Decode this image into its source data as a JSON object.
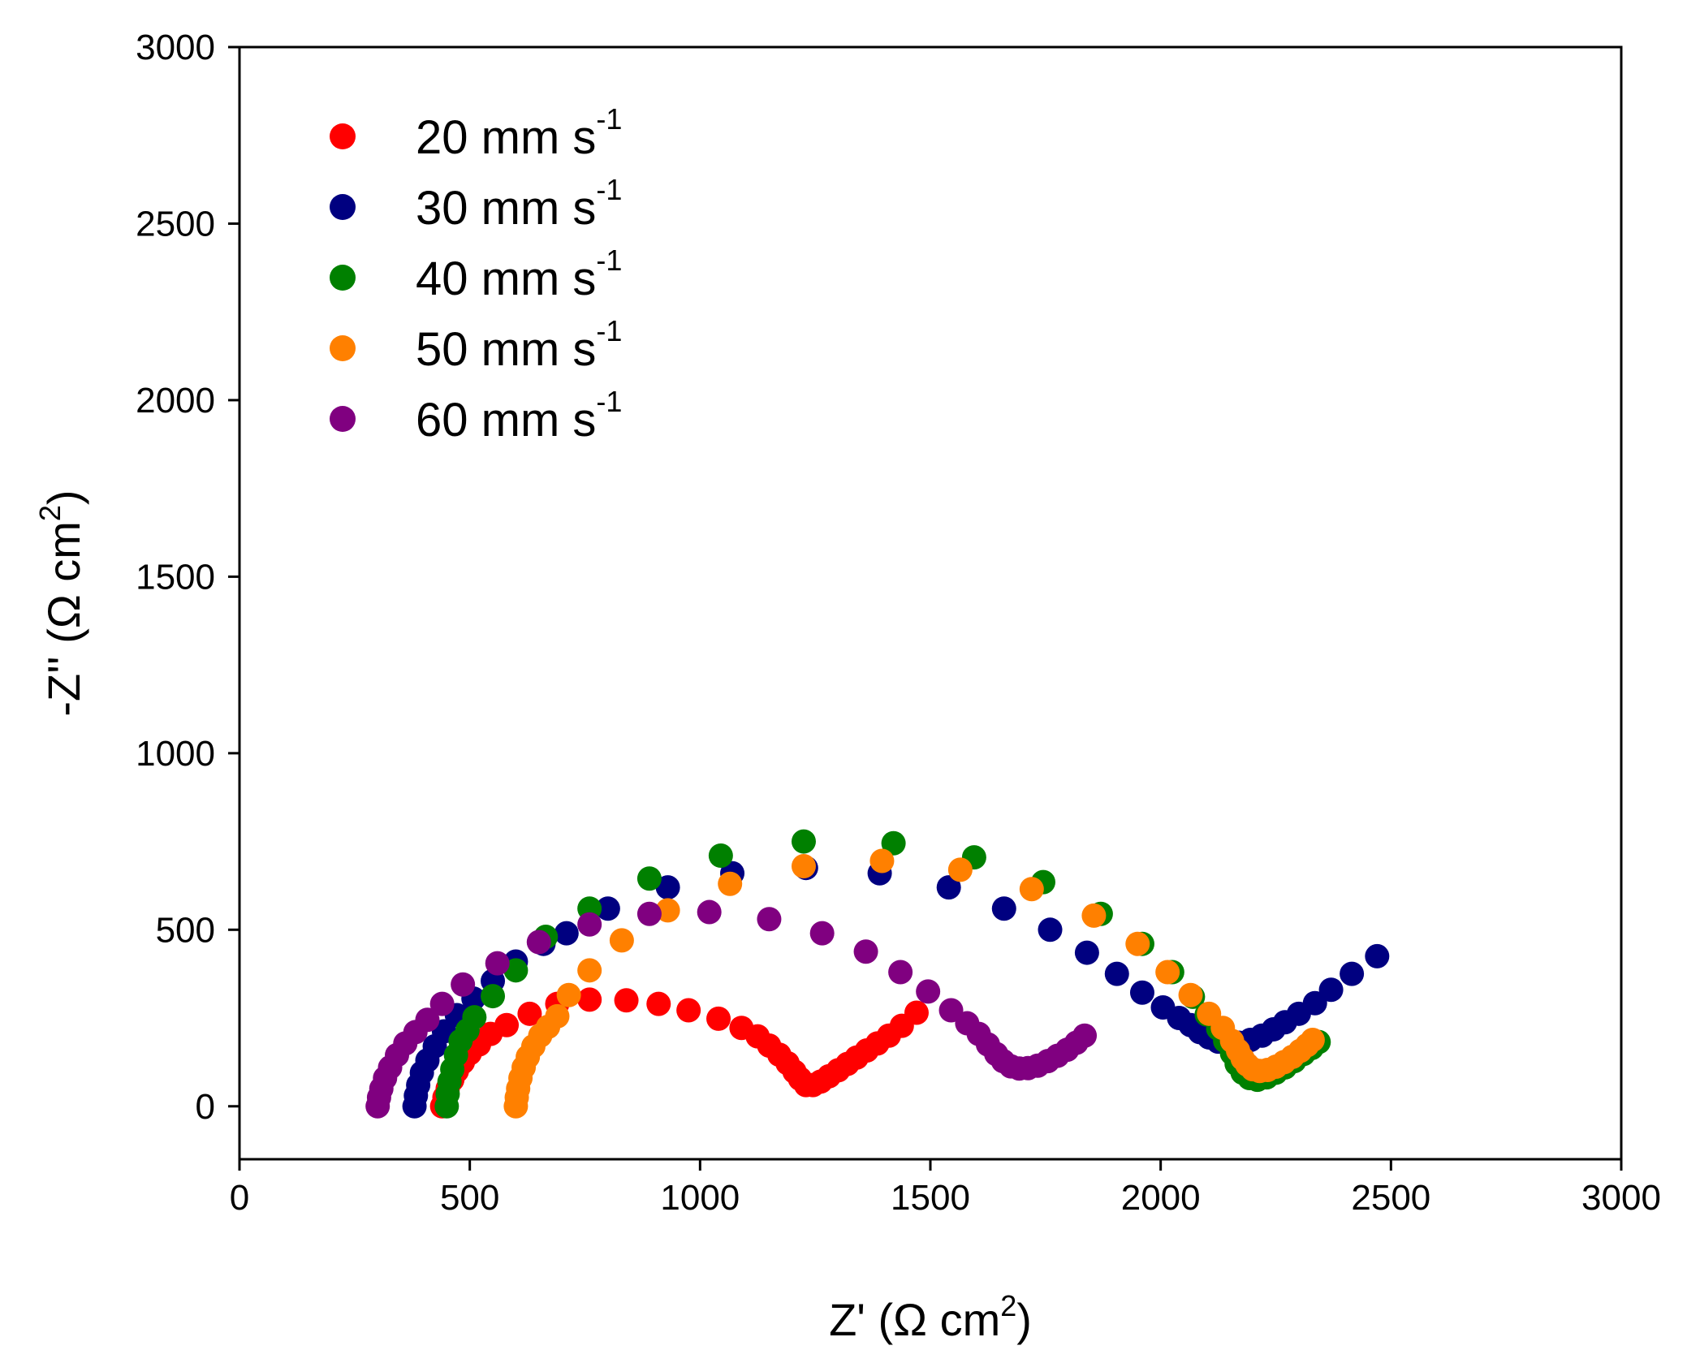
{
  "chart_data": {
    "type": "scatter",
    "title": "",
    "xlabel": "Z' (Ω cm²)",
    "ylabel": "-Z'' (Ω cm²)",
    "xlabel_parts": {
      "main": "Z' (Ω cm",
      "sup": "2",
      "end": ")"
    },
    "ylabel_parts": {
      "main": "-Z'' (Ω cm",
      "sup": "2",
      "end": ")"
    },
    "xlim": [
      0,
      3000
    ],
    "ylim": [
      -150,
      3000
    ],
    "xticks": [
      0,
      500,
      1000,
      1500,
      2000,
      2500,
      3000
    ],
    "yticks": [
      0,
      500,
      1000,
      1500,
      2000,
      2500,
      3000
    ],
    "legend_position": "top-left",
    "series": [
      {
        "name": "20 mm s-1",
        "label_main": "20 mm s",
        "label_sup": "-1",
        "color": "#ff0000",
        "points": [
          [
            440,
            0
          ],
          [
            445,
            25
          ],
          [
            452,
            50
          ],
          [
            462,
            75
          ],
          [
            472,
            100
          ],
          [
            485,
            125
          ],
          [
            500,
            150
          ],
          [
            520,
            175
          ],
          [
            545,
            205
          ],
          [
            580,
            230
          ],
          [
            630,
            262
          ],
          [
            690,
            290
          ],
          [
            760,
            302
          ],
          [
            840,
            300
          ],
          [
            910,
            290
          ],
          [
            975,
            272
          ],
          [
            1040,
            248
          ],
          [
            1090,
            222
          ],
          [
            1125,
            198
          ],
          [
            1150,
            172
          ],
          [
            1172,
            146
          ],
          [
            1190,
            122
          ],
          [
            1205,
            98
          ],
          [
            1217,
            78
          ],
          [
            1230,
            60
          ],
          [
            1245,
            60
          ],
          [
            1262,
            70
          ],
          [
            1280,
            85
          ],
          [
            1300,
            102
          ],
          [
            1320,
            120
          ],
          [
            1340,
            138
          ],
          [
            1362,
            158
          ],
          [
            1385,
            178
          ],
          [
            1410,
            200
          ],
          [
            1438,
            228
          ],
          [
            1470,
            265
          ]
        ]
      },
      {
        "name": "30 mm s-1",
        "label_main": "30 mm s",
        "label_sup": "-1",
        "color": "#000080",
        "points": [
          [
            380,
            0
          ],
          [
            383,
            30
          ],
          [
            388,
            60
          ],
          [
            396,
            95
          ],
          [
            408,
            130
          ],
          [
            424,
            170
          ],
          [
            444,
            212
          ],
          [
            472,
            258
          ],
          [
            508,
            305
          ],
          [
            550,
            355
          ],
          [
            600,
            410
          ],
          [
            660,
            460
          ],
          [
            710,
            490
          ],
          [
            800,
            560
          ],
          [
            930,
            620
          ],
          [
            1070,
            660
          ],
          [
            1230,
            675
          ],
          [
            1390,
            660
          ],
          [
            1540,
            620
          ],
          [
            1660,
            560
          ],
          [
            1760,
            500
          ],
          [
            1840,
            435
          ],
          [
            1905,
            375
          ],
          [
            1960,
            322
          ],
          [
            2005,
            280
          ],
          [
            2040,
            250
          ],
          [
            2065,
            230
          ],
          [
            2085,
            210
          ],
          [
            2105,
            195
          ],
          [
            2125,
            183
          ],
          [
            2145,
            177
          ],
          [
            2170,
            180
          ],
          [
            2195,
            188
          ],
          [
            2220,
            200
          ],
          [
            2245,
            218
          ],
          [
            2270,
            238
          ],
          [
            2300,
            262
          ],
          [
            2335,
            292
          ],
          [
            2370,
            330
          ],
          [
            2415,
            375
          ],
          [
            2470,
            425
          ]
        ]
      },
      {
        "name": "40 mm s-1",
        "label_main": "40 mm s",
        "label_sup": "-1",
        "color": "#008000",
        "points": [
          [
            450,
            0
          ],
          [
            452,
            35
          ],
          [
            456,
            70
          ],
          [
            462,
            105
          ],
          [
            470,
            145
          ],
          [
            480,
            185
          ],
          [
            495,
            215
          ],
          [
            510,
            252
          ],
          [
            550,
            312
          ],
          [
            600,
            385
          ],
          [
            665,
            480
          ],
          [
            760,
            560
          ],
          [
            890,
            645
          ],
          [
            1045,
            710
          ],
          [
            1225,
            750
          ],
          [
            1420,
            745
          ],
          [
            1595,
            705
          ],
          [
            1745,
            635
          ],
          [
            1870,
            545
          ],
          [
            1960,
            460
          ],
          [
            2025,
            380
          ],
          [
            2070,
            310
          ],
          [
            2100,
            260
          ],
          [
            2125,
            220
          ],
          [
            2140,
            185
          ],
          [
            2155,
            150
          ],
          [
            2165,
            120
          ],
          [
            2178,
            95
          ],
          [
            2193,
            80
          ],
          [
            2210,
            75
          ],
          [
            2230,
            82
          ],
          [
            2250,
            95
          ],
          [
            2270,
            110
          ],
          [
            2290,
            128
          ],
          [
            2310,
            148
          ],
          [
            2328,
            165
          ],
          [
            2343,
            182
          ]
        ]
      },
      {
        "name": "50 mm s-1",
        "label_main": "50 mm s",
        "label_sup": "-1",
        "color": "#ff8000",
        "points": [
          [
            600,
            0
          ],
          [
            602,
            25
          ],
          [
            605,
            50
          ],
          [
            610,
            80
          ],
          [
            617,
            110
          ],
          [
            626,
            140
          ],
          [
            638,
            170
          ],
          [
            653,
            200
          ],
          [
            670,
            225
          ],
          [
            690,
            255
          ],
          [
            715,
            315
          ],
          [
            760,
            385
          ],
          [
            830,
            470
          ],
          [
            930,
            555
          ],
          [
            1065,
            630
          ],
          [
            1225,
            680
          ],
          [
            1395,
            695
          ],
          [
            1565,
            670
          ],
          [
            1720,
            615
          ],
          [
            1855,
            540
          ],
          [
            1950,
            460
          ],
          [
            2015,
            380
          ],
          [
            2065,
            315
          ],
          [
            2105,
            262
          ],
          [
            2135,
            222
          ],
          [
            2155,
            185
          ],
          [
            2168,
            158
          ],
          [
            2178,
            135
          ],
          [
            2188,
            118
          ],
          [
            2200,
            105
          ],
          [
            2215,
            100
          ],
          [
            2232,
            103
          ],
          [
            2250,
            112
          ],
          [
            2268,
            125
          ],
          [
            2286,
            140
          ],
          [
            2303,
            157
          ],
          [
            2318,
            173
          ],
          [
            2330,
            188
          ]
        ]
      },
      {
        "name": "60 mm s-1",
        "label_main": "60 mm s",
        "label_sup": "-1",
        "color": "#800080",
        "points": [
          [
            300,
            0
          ],
          [
            303,
            25
          ],
          [
            308,
            50
          ],
          [
            316,
            80
          ],
          [
            327,
            110
          ],
          [
            342,
            145
          ],
          [
            360,
            178
          ],
          [
            382,
            210
          ],
          [
            408,
            245
          ],
          [
            440,
            290
          ],
          [
            485,
            345
          ],
          [
            560,
            405
          ],
          [
            650,
            465
          ],
          [
            760,
            515
          ],
          [
            890,
            545
          ],
          [
            1020,
            550
          ],
          [
            1150,
            530
          ],
          [
            1265,
            490
          ],
          [
            1360,
            438
          ],
          [
            1435,
            380
          ],
          [
            1495,
            325
          ],
          [
            1545,
            272
          ],
          [
            1580,
            235
          ],
          [
            1605,
            205
          ],
          [
            1625,
            175
          ],
          [
            1643,
            148
          ],
          [
            1658,
            128
          ],
          [
            1675,
            113
          ],
          [
            1693,
            107
          ],
          [
            1712,
            108
          ],
          [
            1733,
            115
          ],
          [
            1755,
            128
          ],
          [
            1776,
            143
          ],
          [
            1797,
            160
          ],
          [
            1817,
            180
          ],
          [
            1835,
            200
          ]
        ]
      }
    ]
  }
}
